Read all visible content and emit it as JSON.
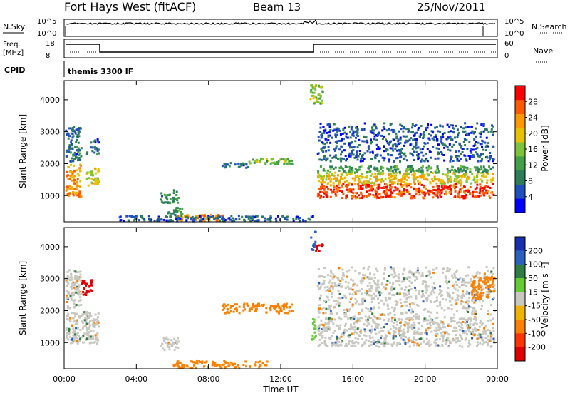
{
  "header": {
    "station": "Fort Hays West (fitACF)",
    "beam": "Beam 13",
    "date": "25/Nov/2011"
  },
  "aux": {
    "nsky_label": "N.Sky",
    "nsky_ticks": [
      "10^5",
      "10^0"
    ],
    "nsearch_label": "N.Search",
    "nsearch_ticks": [
      "10^5",
      "10^0"
    ],
    "freq_label": "Freq.",
    "freq_unit": "[MHz]",
    "freq_ticks": [
      "18",
      "8"
    ],
    "nave_label": "Nave",
    "nave_ticks": [
      "60",
      "0"
    ],
    "cpid_label": "CPID",
    "cpid_value": "themis 3300 IF"
  },
  "colors": {
    "power_scale": [
      "#0000ff",
      "#1f4fbf",
      "#2e7d5a",
      "#43a047",
      "#7cc43c",
      "#e6c200",
      "#ff9900",
      "#ff5a00",
      "#ff0000"
    ],
    "velocity_scale": [
      "#1a2fb0",
      "#2b5fc0",
      "#2f7d45",
      "#66cc33",
      "#c8c8c0",
      "#f0b400",
      "#ff8000",
      "#ff3300",
      "#e00000"
    ]
  },
  "chart_data": [
    {
      "type": "heatmap",
      "title": "Power",
      "xlabel": "Time UT",
      "ylabel": "Slant Range [km]",
      "xlim_hours": [
        0,
        24
      ],
      "ylim": [
        180,
        4600
      ],
      "x_ticks": [
        "00:00",
        "04:00",
        "08:00",
        "12:00",
        "16:00",
        "20:00",
        "00:00"
      ],
      "y_ticks": [
        1000,
        2000,
        3000,
        4000
      ],
      "colorbar_label": "Power [dB]",
      "colorbar_ticks": [
        "4",
        "8",
        "12",
        "16",
        "20",
        "24",
        "28"
      ],
      "colorbar_range": [
        0,
        30
      ],
      "regions": [
        {
          "t0": 0.05,
          "t1": 0.9,
          "r0": 1000,
          "r1": 2000,
          "level": 0.75
        },
        {
          "t0": 0.05,
          "t1": 0.9,
          "r0": 2100,
          "r1": 3200,
          "level": 0.2
        },
        {
          "t0": 1.2,
          "t1": 1.9,
          "r0": 1300,
          "r1": 1900,
          "level": 0.6
        },
        {
          "t0": 1.2,
          "t1": 1.9,
          "r0": 2300,
          "r1": 2800,
          "level": 0.2
        },
        {
          "t0": 5.3,
          "t1": 6.3,
          "r0": 800,
          "r1": 1200,
          "level": 0.3
        },
        {
          "t0": 5.7,
          "t1": 6.5,
          "r0": 350,
          "r1": 650,
          "level": 0.3
        },
        {
          "t0": 6.2,
          "t1": 8.8,
          "r0": 230,
          "r1": 430,
          "level": 0.8
        },
        {
          "t0": 8.6,
          "t1": 10.2,
          "r0": 1900,
          "r1": 2050,
          "level": 0.2
        },
        {
          "t0": 10.2,
          "t1": 12.6,
          "r0": 2000,
          "r1": 2200,
          "level": 0.45
        },
        {
          "t0": 3.0,
          "t1": 13.8,
          "r0": 230,
          "r1": 400,
          "level": 0.15
        },
        {
          "t0": 13.6,
          "t1": 14.3,
          "r0": 3900,
          "r1": 4500,
          "level": 0.5
        },
        {
          "t0": 14.0,
          "t1": 23.8,
          "r0": 950,
          "r1": 1400,
          "level": 0.92
        },
        {
          "t0": 14.0,
          "t1": 23.8,
          "r0": 1400,
          "r1": 1750,
          "level": 0.62
        },
        {
          "t0": 14.0,
          "t1": 23.8,
          "r0": 1750,
          "r1": 1950,
          "level": 0.35
        },
        {
          "t0": 14.0,
          "t1": 23.8,
          "r0": 2100,
          "r1": 3300,
          "level": 0.15
        }
      ]
    },
    {
      "type": "heatmap",
      "title": "Velocity",
      "xlabel": "Time UT",
      "ylabel": "Slant Range [km]",
      "xlim_hours": [
        0,
        24
      ],
      "ylim": [
        180,
        4600
      ],
      "x_ticks": [
        "00:00",
        "04:00",
        "08:00",
        "12:00",
        "16:00",
        "20:00",
        "00:00"
      ],
      "y_ticks": [
        1000,
        2000,
        3000,
        4000
      ],
      "colorbar_label": "Velocity [m s⁻¹]",
      "colorbar_ticks": [
        "200",
        "100",
        "50",
        "15",
        "-15",
        "-50",
        "-100",
        "-200"
      ],
      "colorbar_range": [
        -250,
        250
      ],
      "regions": [
        {
          "t0": 0.05,
          "t1": 1.9,
          "r0": 1000,
          "r1": 2000,
          "level": 0.0
        },
        {
          "t0": 0.05,
          "t1": 0.9,
          "r0": 2100,
          "r1": 3300,
          "level": 0.0
        },
        {
          "t0": 0.9,
          "t1": 1.5,
          "r0": 2500,
          "r1": 3000,
          "level": -220
        },
        {
          "t0": 5.3,
          "t1": 6.3,
          "r0": 800,
          "r1": 1200,
          "level": 0.0
        },
        {
          "t0": 6.0,
          "t1": 11.2,
          "r0": 230,
          "r1": 450,
          "level": -60
        },
        {
          "t0": 8.7,
          "t1": 12.6,
          "r0": 1950,
          "r1": 2250,
          "level": -60
        },
        {
          "t0": 13.6,
          "t1": 13.9,
          "r0": 1100,
          "r1": 1800,
          "level": 40
        },
        {
          "t0": 13.6,
          "t1": 13.9,
          "r0": 3900,
          "r1": 4500,
          "level": 180
        },
        {
          "t0": 13.9,
          "t1": 14.3,
          "r0": 3900,
          "r1": 4200,
          "level": -220
        },
        {
          "t0": 14.0,
          "t1": 23.8,
          "r0": 900,
          "r1": 1850,
          "level": 0.0
        },
        {
          "t0": 14.0,
          "t1": 23.8,
          "r0": 1900,
          "r1": 3400,
          "level": 20
        },
        {
          "t0": 22.5,
          "t1": 23.8,
          "r0": 2400,
          "r1": 3100,
          "level": -60
        }
      ]
    }
  ]
}
